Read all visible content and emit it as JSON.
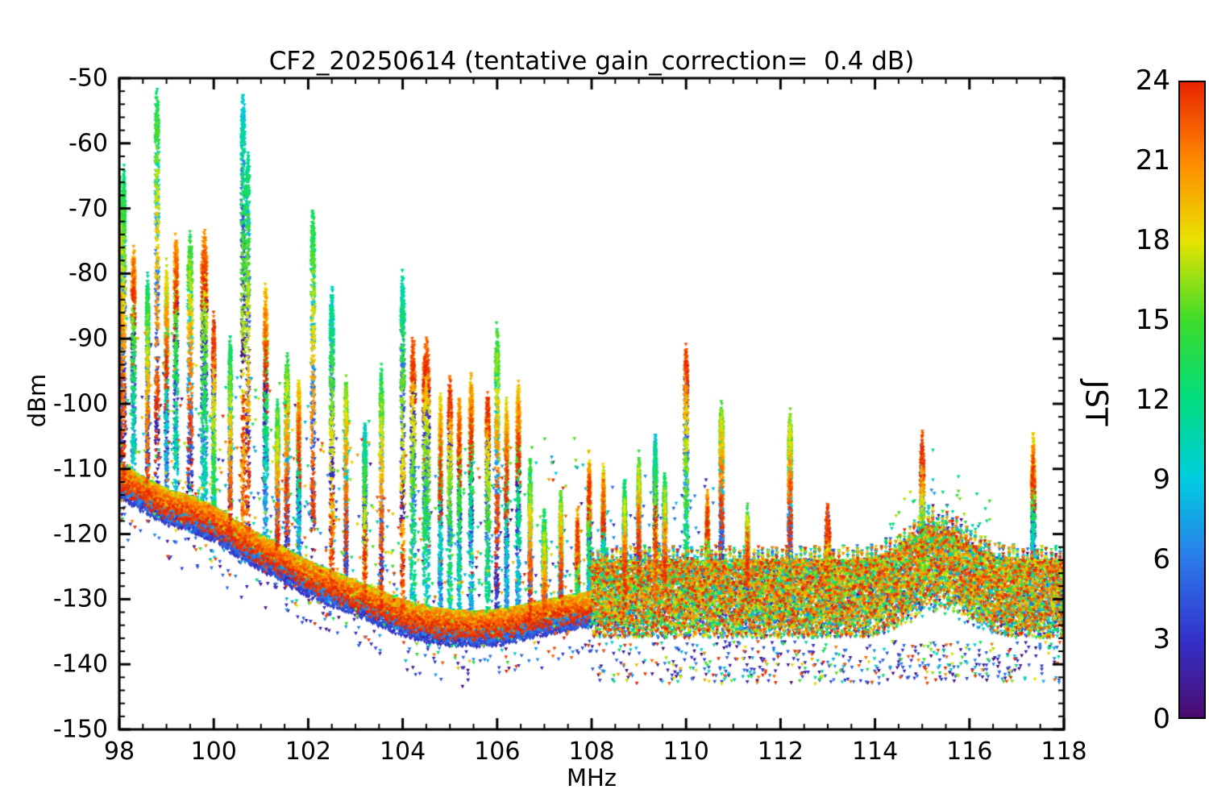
{
  "chart_data": {
    "type": "scatter",
    "title": "CF2_20250614 (tentative gain_correction=  0.4 dB)",
    "xlabel": "MHz",
    "ylabel": "dBm",
    "xlim": [
      98,
      118
    ],
    "ylim": [
      -150,
      -50
    ],
    "xticks": [
      98,
      100,
      102,
      104,
      106,
      108,
      110,
      112,
      114,
      116,
      118
    ],
    "yticks": [
      -150,
      -140,
      -130,
      -120,
      -110,
      -100,
      -90,
      -80,
      -70,
      -60,
      -50
    ],
    "x_minor_step": 0.5,
    "y_minor_step": 2,
    "grid": false,
    "marker": "triangle-down",
    "point_color_meaning": "hour of day (JST)",
    "frame_color": "#000000",
    "background_color": "#ffffff",
    "colorbar": {
      "label": "JST",
      "min": 0,
      "max": 24,
      "ticks": [
        0,
        3,
        6,
        9,
        12,
        15,
        18,
        21,
        24
      ],
      "stops": [
        {
          "h": 0,
          "c": "#4b0a6e"
        },
        {
          "h": 3,
          "c": "#3333cc"
        },
        {
          "h": 6,
          "c": "#2b7bea"
        },
        {
          "h": 9,
          "c": "#00cde0"
        },
        {
          "h": 12,
          "c": "#00dd7f"
        },
        {
          "h": 15,
          "c": "#3ddc2a"
        },
        {
          "h": 18,
          "c": "#e8e300"
        },
        {
          "h": 21,
          "c": "#ff8a00"
        },
        {
          "h": 24,
          "c": "#e82500"
        }
      ]
    },
    "noise_floor": [
      [
        98,
        -110.5
      ],
      [
        98.5,
        -112.5
      ],
      [
        99,
        -114.5
      ],
      [
        99.5,
        -115.5
      ],
      [
        100,
        -117
      ],
      [
        100.5,
        -119.5
      ],
      [
        101,
        -121.5
      ],
      [
        101.5,
        -123.5
      ],
      [
        102,
        -125.5
      ],
      [
        102.5,
        -127
      ],
      [
        103,
        -128.5
      ],
      [
        103.5,
        -130
      ],
      [
        104,
        -131.5
      ],
      [
        104.5,
        -132.5
      ],
      [
        105,
        -133
      ],
      [
        105.5,
        -133.2
      ],
      [
        106,
        -133
      ],
      [
        106.5,
        -132.3
      ],
      [
        107,
        -131.5
      ],
      [
        107.5,
        -130.8
      ],
      [
        107.99,
        -130.2
      ]
    ],
    "band2": {
      "start": 108,
      "center": -130,
      "top": -122,
      "bottom": -138,
      "outlier_min": -143,
      "hump_freq": 115.35,
      "hump_amp": 7
    },
    "peaks_columns": [
      "freq_mhz",
      "peak_dbm",
      "halfwidth_mhz",
      "peak_hour_jst"
    ],
    "peaks": [
      [
        98.02,
        -66,
        0.035,
        14
      ],
      [
        98.1,
        -64,
        0.03,
        12
      ],
      [
        98.3,
        -76,
        0.04,
        20
      ],
      [
        98.6,
        -80,
        0.03,
        12
      ],
      [
        98.8,
        -52,
        0.04,
        13
      ],
      [
        99.0,
        -79,
        0.03,
        17
      ],
      [
        99.2,
        -74,
        0.04,
        20
      ],
      [
        99.5,
        -74,
        0.05,
        14
      ],
      [
        99.8,
        -74,
        0.06,
        21
      ],
      [
        100.0,
        -87,
        0.03,
        23
      ],
      [
        100.35,
        -90,
        0.03,
        12
      ],
      [
        100.62,
        -52,
        0.04,
        9
      ],
      [
        100.72,
        -61,
        0.04,
        11
      ],
      [
        101.1,
        -82,
        0.04,
        19
      ],
      [
        101.35,
        -99,
        0.03,
        13
      ],
      [
        101.55,
        -92,
        0.04,
        14
      ],
      [
        101.8,
        -96,
        0.03,
        18
      ],
      [
        102.1,
        -70,
        0.04,
        13
      ],
      [
        102.5,
        -82,
        0.04,
        10
      ],
      [
        102.8,
        -96,
        0.03,
        15
      ],
      [
        103.2,
        -102,
        0.03,
        9
      ],
      [
        103.55,
        -94,
        0.03,
        13
      ],
      [
        104.0,
        -79,
        0.04,
        10
      ],
      [
        104.22,
        -90,
        0.05,
        22
      ],
      [
        104.5,
        -90,
        0.07,
        22
      ],
      [
        104.8,
        -99,
        0.03,
        18
      ],
      [
        105.0,
        -96,
        0.04,
        22
      ],
      [
        105.2,
        -99,
        0.03,
        20
      ],
      [
        105.45,
        -95,
        0.04,
        19
      ],
      [
        105.8,
        -98,
        0.04,
        22
      ],
      [
        106.0,
        -88,
        0.04,
        14
      ],
      [
        106.2,
        -99,
        0.03,
        18
      ],
      [
        106.45,
        -97,
        0.04,
        19
      ],
      [
        106.7,
        -109,
        0.03,
        13
      ],
      [
        107.0,
        -116,
        0.04,
        12
      ],
      [
        107.35,
        -114,
        0.03,
        15
      ],
      [
        107.7,
        -117,
        0.03,
        20
      ],
      [
        107.95,
        -108,
        0.03,
        20
      ],
      [
        108.25,
        -110,
        0.03,
        18
      ],
      [
        108.7,
        -112,
        0.03,
        12
      ],
      [
        109.0,
        -108,
        0.03,
        14
      ],
      [
        109.35,
        -104,
        0.03,
        9
      ],
      [
        109.55,
        -111,
        0.03,
        12
      ],
      [
        110.0,
        -91,
        0.04,
        23
      ],
      [
        110.45,
        -114,
        0.03,
        20
      ],
      [
        110.75,
        -99,
        0.04,
        15
      ],
      [
        111.3,
        -116,
        0.03,
        14
      ],
      [
        112.2,
        -101,
        0.04,
        15
      ],
      [
        113.0,
        -116,
        0.05,
        23
      ],
      [
        115.0,
        -105,
        0.04,
        23
      ],
      [
        117.35,
        -105,
        0.04,
        19
      ]
    ]
  }
}
